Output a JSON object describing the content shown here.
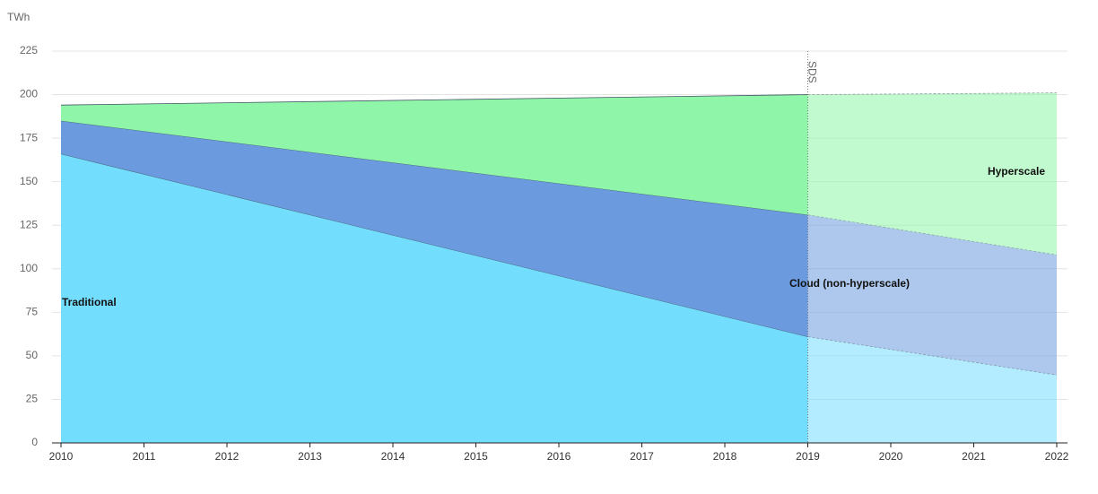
{
  "chart_data": {
    "type": "stacked_area",
    "y_axis_label": "TWh",
    "x": [
      2010,
      2019,
      2022
    ],
    "series": [
      {
        "name": "Traditional",
        "color": "#73ddfd",
        "values": [
          166,
          61,
          39
        ]
      },
      {
        "name": "Cloud (non-hyperscale)",
        "color": "#6b9bde",
        "values": [
          19,
          70,
          69
        ]
      },
      {
        "name": "Hyperscale",
        "color": "#8ff5a8",
        "values": [
          9,
          69,
          93
        ]
      }
    ],
    "annotation": {
      "text": "SDS",
      "x": 2019
    },
    "xlim": [
      2010,
      2022
    ],
    "xticks": [
      2010,
      2011,
      2012,
      2013,
      2014,
      2015,
      2016,
      2017,
      2018,
      2019,
      2020,
      2021,
      2022
    ],
    "ylim": [
      0,
      225
    ],
    "yticks": [
      0,
      25,
      50,
      75,
      100,
      125,
      150,
      175,
      200,
      225
    ],
    "grid": true
  }
}
